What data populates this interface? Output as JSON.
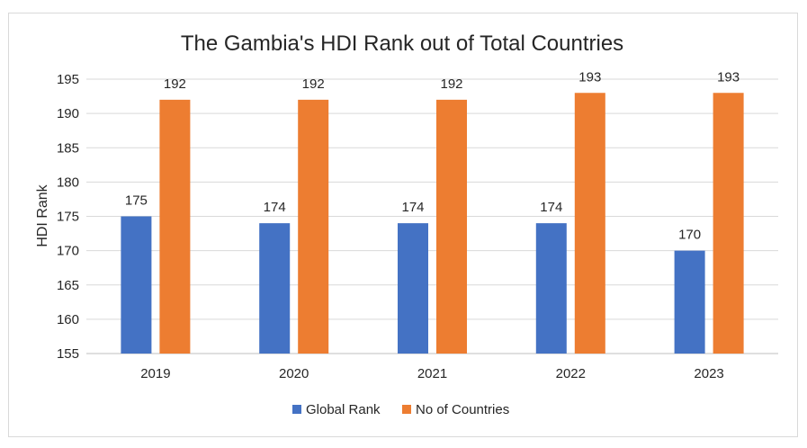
{
  "chart_data": {
    "type": "bar",
    "title": "The Gambia's HDI Rank out of Total Countries",
    "xlabel": "",
    "ylabel": "HDI Rank",
    "categories": [
      "2019",
      "2020",
      "2021",
      "2022",
      "2023"
    ],
    "ylim": [
      155,
      195
    ],
    "yticks": [
      155,
      160,
      165,
      170,
      175,
      180,
      185,
      190,
      195
    ],
    "grid": true,
    "legend_position": "bottom",
    "series": [
      {
        "name": "Global Rank",
        "color": "#4472C4",
        "values": [
          175,
          174,
          174,
          174,
          170
        ]
      },
      {
        "name": "No of Countries",
        "color": "#ED7D31",
        "values": [
          192,
          192,
          192,
          193,
          193
        ]
      }
    ]
  }
}
